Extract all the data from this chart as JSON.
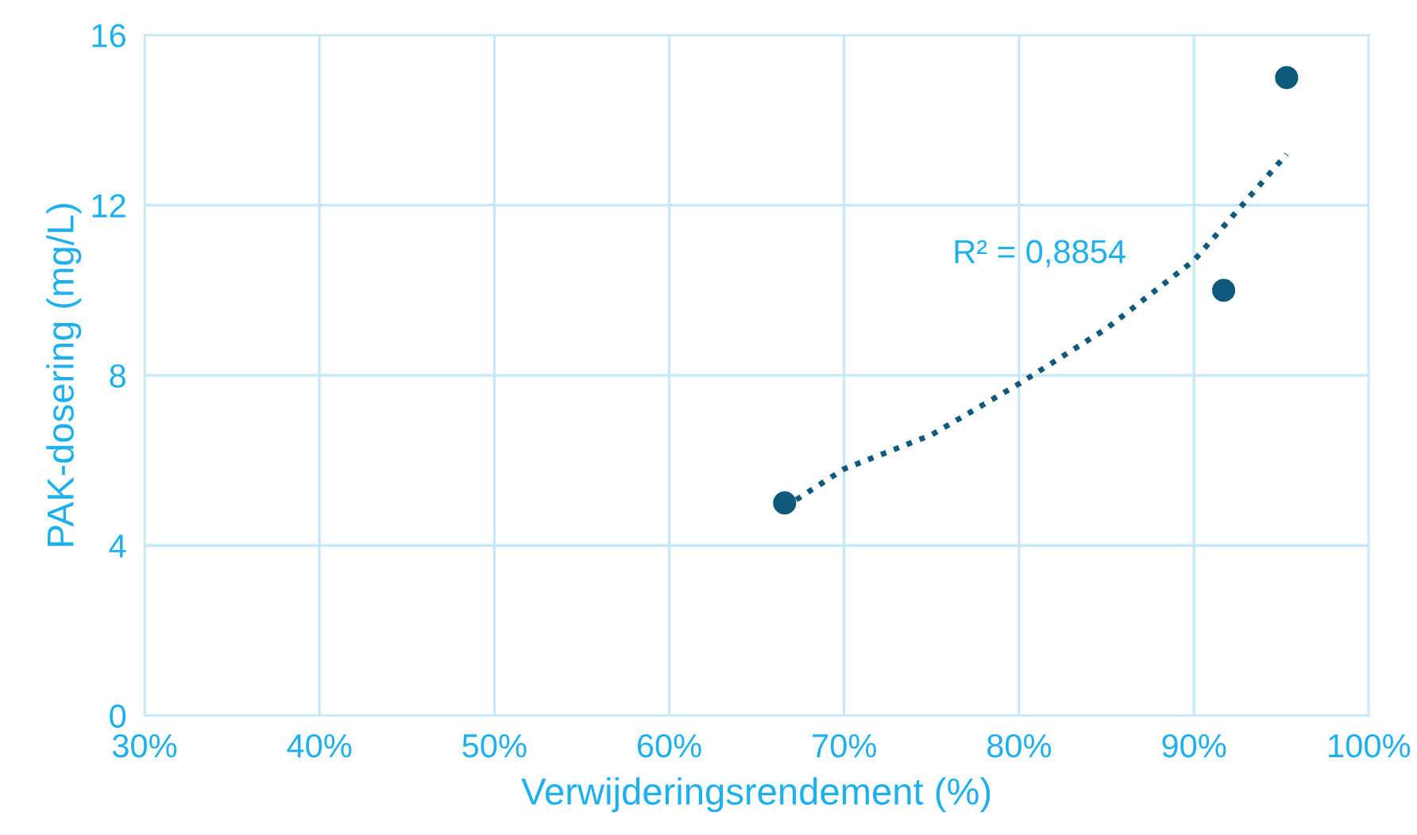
{
  "chart_data": {
    "type": "scatter",
    "xlabel": "Verwijderingsrendement (%)",
    "ylabel": "PAK-dosering (mg/L)",
    "xlim": [
      30,
      100
    ],
    "xticks": [
      {
        "value": 30,
        "label": "30%"
      },
      {
        "value": 40,
        "label": "40%"
      },
      {
        "value": 50,
        "label": "50%"
      },
      {
        "value": 60,
        "label": "60%"
      },
      {
        "value": 70,
        "label": "70%"
      },
      {
        "value": 80,
        "label": "80%"
      },
      {
        "value": 90,
        "label": "90%"
      },
      {
        "value": 100,
        "label": "100%"
      }
    ],
    "ylim": [
      0,
      16
    ],
    "yticks": [
      0,
      4,
      8,
      12,
      16
    ],
    "grid": true,
    "series": [
      {
        "color": "#0e5a7a",
        "marker": "circle",
        "x": [
          66.6,
          91.7,
          95.3
        ],
        "values": [
          5,
          10,
          15
        ]
      },
      {
        "type": "line",
        "color": "#0e5a7a",
        "marker": "none",
        "line_style": "dotted",
        "x": [
          66.6,
          70,
          75,
          80,
          85,
          90,
          95.3
        ],
        "values": [
          4.9,
          5.8,
          6.6,
          7.8,
          9.1,
          10.7,
          13.2
        ]
      }
    ],
    "annotations": [
      "R² = 0,8854"
    ]
  }
}
